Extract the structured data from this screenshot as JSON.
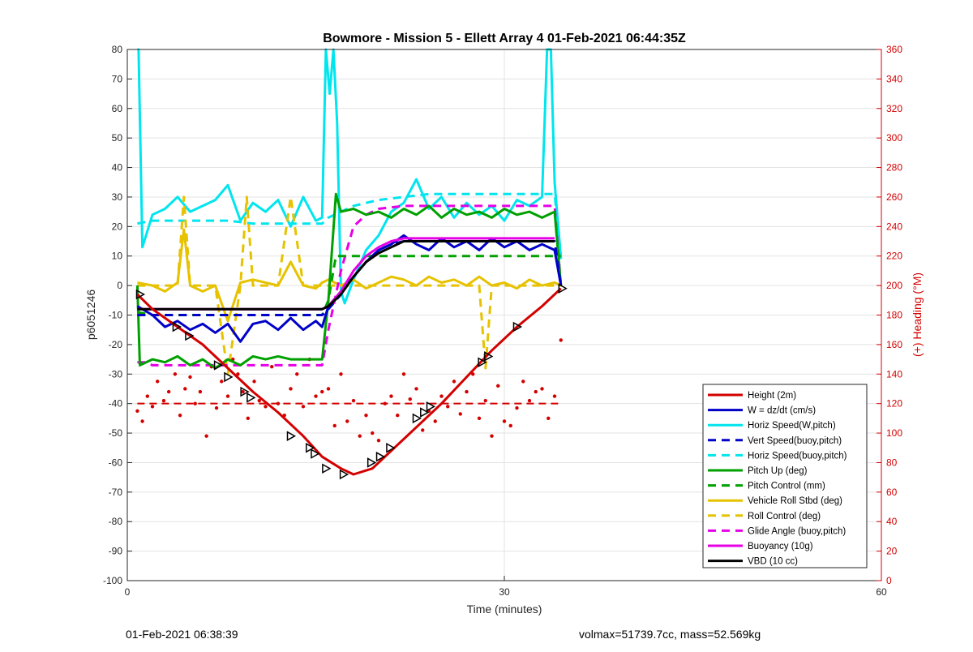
{
  "chart_data": {
    "type": "line",
    "title": "Bowmore - Mission 5 - Ellett Array 4 01-Feb-2021 06:44:35Z",
    "xlabel": "Time (minutes)",
    "ylabel": "p6051246",
    "ylabel_right": "(+) Heading (°M)",
    "xlim": [
      0,
      60
    ],
    "ylim": [
      -100,
      80
    ],
    "ylim_right": [
      0,
      360
    ],
    "x_ticks": [
      0,
      30,
      60
    ],
    "y_ticks": [
      -100,
      -90,
      -80,
      -70,
      -60,
      -50,
      -40,
      -30,
      -20,
      -10,
      0,
      10,
      20,
      30,
      40,
      50,
      60,
      70,
      80
    ],
    "y_ticks_right": [
      0,
      20,
      40,
      60,
      80,
      100,
      120,
      140,
      160,
      180,
      200,
      220,
      240,
      260,
      280,
      300,
      320,
      340,
      360
    ],
    "grid": true,
    "legend_position": "bottom-right",
    "series": [
      {
        "name": "Height (2m)",
        "color": "#d40000",
        "style": "solid",
        "x": [
          0.8,
          2,
          4,
          6,
          8,
          10,
          12,
          14,
          15.5,
          17,
          18,
          19.5,
          21,
          23,
          25,
          27,
          29,
          31,
          33,
          34.5
        ],
        "y": [
          -3,
          -8,
          -14,
          -20,
          -28,
          -36,
          -43,
          -51,
          -58,
          -62,
          -64,
          -62,
          -56,
          -48,
          -40,
          -31,
          -22,
          -14,
          -7,
          -1
        ]
      },
      {
        "name": "W = dz/dt (cm/s)",
        "color": "#0000c8",
        "style": "solid",
        "x": [
          0.8,
          2,
          3,
          4,
          5,
          6,
          7,
          8,
          9,
          10,
          11,
          12,
          13,
          14,
          15,
          15.5,
          16,
          17,
          18,
          19,
          20,
          21,
          22,
          23,
          24,
          25,
          26,
          27,
          28,
          29,
          30,
          31,
          32,
          33,
          34,
          34.5
        ],
        "y": [
          -7,
          -10,
          -14,
          -12,
          -15,
          -13,
          -16,
          -13,
          -19,
          -13,
          -12,
          -15,
          -11,
          -15,
          -12,
          -14,
          -7,
          -2,
          3,
          8,
          12,
          14,
          17,
          14,
          12,
          16,
          13,
          15,
          12,
          16,
          13,
          15,
          12,
          14,
          12,
          0
        ]
      },
      {
        "name": "Horiz Speed(W,pitch)",
        "color": "#00e5ee",
        "style": "solid",
        "x": [
          0.8,
          0.9,
          1.2,
          2,
          3,
          4,
          5,
          6,
          7,
          8,
          9,
          10,
          11,
          12,
          13,
          14,
          15,
          15.5,
          15.8,
          16.1,
          16.4,
          16.7,
          17,
          17.3,
          18,
          19,
          20,
          21,
          22,
          23,
          24,
          25,
          26,
          27,
          28,
          29,
          30,
          31,
          32,
          33,
          33.4,
          33.7,
          34,
          34.5
        ],
        "y": [
          80,
          80,
          13,
          24,
          26,
          30,
          25,
          27,
          29,
          34,
          22,
          28,
          25,
          29,
          20,
          30,
          22,
          23,
          80,
          65,
          80,
          55,
          -2,
          -6,
          2,
          12,
          17,
          25,
          28,
          36,
          26,
          30,
          23,
          28,
          24,
          27,
          22,
          29,
          27,
          30,
          80,
          80,
          35,
          9
        ]
      },
      {
        "name": "Vert Speed(buoy,pitch)",
        "color": "#0000c8",
        "style": "dashed",
        "x": [
          0.8,
          2,
          4,
          6,
          8,
          10,
          12,
          14,
          15.5,
          16,
          17,
          18,
          19,
          20,
          21,
          22,
          23,
          24,
          26,
          28,
          30,
          32,
          34,
          34.5
        ],
        "y": [
          -10,
          -10,
          -10,
          -10,
          -10,
          -10,
          -10,
          -10,
          -10,
          -8,
          -3,
          3,
          8,
          12,
          14,
          15,
          15,
          15,
          15,
          15,
          15,
          15,
          15,
          0
        ]
      },
      {
        "name": "Horiz Speed(buoy,pitch)",
        "color": "#00e5ee",
        "style": "dashed",
        "x": [
          0.8,
          2,
          4,
          6,
          8,
          10,
          12,
          14,
          15.5,
          16,
          17,
          18,
          19,
          20,
          22,
          24,
          26,
          28,
          30,
          32,
          34,
          34.5
        ],
        "y": [
          21,
          22,
          22,
          22,
          22,
          21,
          21,
          21,
          21,
          23,
          25,
          27,
          28,
          29,
          30,
          31,
          31,
          31,
          31,
          31,
          31,
          10
        ]
      },
      {
        "name": "Pitch Up (deg)",
        "color": "#00a000",
        "style": "solid",
        "x": [
          0.8,
          1,
          2,
          3,
          4,
          5,
          6,
          7,
          8,
          9,
          10,
          11,
          12,
          13,
          14,
          15,
          15.5,
          16,
          16.6,
          17,
          18,
          19,
          20,
          21,
          22,
          23,
          24,
          25,
          26,
          27,
          28,
          29,
          30,
          31,
          32,
          33,
          34,
          34.5
        ],
        "y": [
          0,
          -27,
          -25,
          -26,
          -24,
          -27,
          -25,
          -28,
          -25,
          -27,
          -24,
          -25,
          -24,
          -25,
          -25,
          -25,
          -25,
          -5,
          31,
          25,
          26,
          24,
          25,
          23,
          26,
          24,
          27,
          23,
          26,
          24,
          25,
          23,
          26,
          24,
          25,
          23,
          25,
          0
        ]
      },
      {
        "name": "Pitch Control (mm)",
        "color": "#00a000",
        "style": "dashed",
        "x": [
          0.8,
          2,
          4,
          6,
          8,
          10,
          12,
          14,
          15.5,
          16,
          16.6,
          17,
          18,
          20,
          22,
          24,
          26,
          28,
          30,
          32,
          34,
          34.5
        ],
        "y": [
          -9,
          -10,
          -10,
          -10,
          -10,
          -10,
          -10,
          -10,
          -10,
          -5,
          10,
          10,
          10,
          10,
          10,
          10,
          10,
          10,
          10,
          10,
          10,
          10
        ]
      },
      {
        "name": "Vehicle Roll Stbd (deg)",
        "color": "#e6c200",
        "style": "solid",
        "x": [
          0.8,
          2,
          3,
          4,
          4.5,
          5,
          6,
          7,
          8,
          9,
          10,
          11,
          12,
          13,
          14,
          15,
          15.5,
          16,
          17,
          18,
          19,
          20,
          21,
          22,
          23,
          24,
          25,
          26,
          27,
          28,
          29,
          30,
          31,
          32,
          33,
          34,
          34.5
        ],
        "y": [
          1,
          0,
          -2,
          1,
          19,
          0,
          -2,
          0,
          -12,
          1,
          2,
          1,
          0,
          8,
          0,
          -1,
          1,
          2,
          0,
          2,
          -1,
          1,
          3,
          2,
          0,
          3,
          1,
          2,
          0,
          3,
          0,
          1,
          -1,
          2,
          0,
          1,
          0
        ]
      },
      {
        "name": "Roll Control (deg)",
        "color": "#e6c200",
        "style": "dashed",
        "x": [
          0.8,
          2,
          3,
          4,
          4.5,
          5,
          6,
          7,
          8,
          9,
          9.5,
          10,
          12,
          13,
          14,
          15,
          15.5,
          16,
          18,
          19,
          20,
          21,
          22,
          23,
          24,
          25,
          26,
          27,
          28,
          28.5,
          29,
          30,
          31,
          32,
          34,
          34.5
        ],
        "y": [
          0,
          0,
          0,
          0,
          30,
          0,
          0,
          0,
          -30,
          0,
          30,
          0,
          0,
          30,
          0,
          0,
          0,
          0,
          0,
          0,
          0,
          0,
          0,
          0,
          0,
          0,
          0,
          0,
          0,
          -28,
          0,
          0,
          0,
          0,
          0,
          0
        ]
      },
      {
        "name": "Glide Angle (buoy,pitch)",
        "color": "#e600e6",
        "style": "dashed",
        "x": [
          0.8,
          1.5,
          2,
          4,
          6,
          8,
          10,
          12,
          14,
          15.5,
          16,
          17,
          18,
          19,
          20,
          22,
          24,
          26,
          28,
          30,
          32,
          34,
          34.5
        ],
        "y": [
          -26,
          -26,
          -27,
          -27,
          -27,
          -27,
          -27,
          -27,
          -27,
          -27,
          -15,
          5,
          20,
          24,
          26,
          27,
          27,
          27,
          27,
          27,
          27,
          27,
          0
        ]
      },
      {
        "name": "Buoyancy (10g)",
        "color": "#e600e6",
        "style": "solid",
        "x": [
          0.8,
          2,
          4,
          6,
          8,
          10,
          12,
          14,
          15.5,
          16,
          17,
          18,
          19,
          20,
          21,
          22,
          24,
          26,
          28,
          30,
          32,
          34
        ],
        "y": [
          -8,
          -8,
          -8,
          -8,
          -8,
          -8,
          -8,
          -8,
          -8,
          -7,
          -2,
          5,
          10,
          13,
          15,
          16,
          16,
          16,
          16,
          16,
          16,
          16
        ]
      },
      {
        "name": "VBD (10 cc)",
        "color": "#000000",
        "style": "solid",
        "x": [
          0.8,
          2,
          4,
          6,
          8,
          10,
          12,
          14,
          15.5,
          16,
          17,
          18,
          19,
          20,
          21,
          22,
          24,
          26,
          28,
          30,
          32,
          34
        ],
        "y": [
          -8,
          -8,
          -8,
          -8,
          -8,
          -8,
          -8,
          -8,
          -8,
          -7,
          -3,
          3,
          8,
          11,
          13,
          15,
          15,
          15,
          15,
          15,
          15,
          15
        ]
      }
    ],
    "heading_reference": {
      "color": "#d40000",
      "style": "dashed",
      "x": [
        0.8,
        34.5
      ],
      "y_right": [
        120,
        120
      ]
    },
    "heading_points": {
      "color": "#d40000",
      "axis": "right",
      "x": [
        0.8,
        1.2,
        1.6,
        2.0,
        2.4,
        2.9,
        3.3,
        3.8,
        4.2,
        4.6,
        5.0,
        5.4,
        5.8,
        6.3,
        6.7,
        7.1,
        7.5,
        8.0,
        8.4,
        8.8,
        9.2,
        9.6,
        10.1,
        10.5,
        11.0,
        11.5,
        12.0,
        12.5,
        13.0,
        13.5,
        14.0,
        14.5,
        15.0,
        15.5,
        16.0,
        16.5,
        17.0,
        17.5,
        18.0,
        18.5,
        19.0,
        19.5,
        20.0,
        20.5,
        21.0,
        21.5,
        22.0,
        22.5,
        23.0,
        23.5,
        24.0,
        24.5,
        25.0,
        25.5,
        26.0,
        26.5,
        27.0,
        27.5,
        28.0,
        28.5,
        29.0,
        29.5,
        30.0,
        30.5,
        31.0,
        31.5,
        32.0,
        32.5,
        33.0,
        33.5,
        34.0,
        34.5
      ],
      "y_right": [
        115,
        108,
        125,
        118,
        135,
        122,
        128,
        140,
        112,
        130,
        138,
        120,
        128,
        98,
        145,
        117,
        135,
        125,
        150,
        140,
        128,
        110,
        135,
        122,
        118,
        145,
        120,
        112,
        130,
        140,
        118,
        150,
        125,
        128,
        130,
        105,
        140,
        108,
        122,
        98,
        112,
        100,
        95,
        120,
        125,
        112,
        140,
        123,
        130,
        102,
        115,
        108,
        125,
        118,
        135,
        113,
        128,
        140,
        110,
        122,
        98,
        132,
        108,
        105,
        117,
        135,
        122,
        128,
        130,
        110,
        125,
        163
      ]
    },
    "markers": {
      "color": "#000000",
      "shape": "triangle",
      "x": [
        1.0,
        3.9,
        4.9,
        7.2,
        8.0,
        9.3,
        9.8,
        13.0,
        14.5,
        14.9,
        15.8,
        17.2,
        19.4,
        20.1,
        20.9,
        23.0,
        23.6,
        24.1,
        28.2,
        28.7,
        31.0,
        34.6
      ],
      "y": [
        -3,
        -14,
        -17,
        -27,
        -31,
        -36,
        -38,
        -51,
        -55,
        -57,
        -62,
        -64,
        -60,
        -58,
        -55,
        -45,
        -43,
        -41,
        -26,
        -24,
        -14,
        -1
      ]
    }
  },
  "footer": {
    "timestamp": "01-Feb-2021 06:38:39",
    "stats": "volmax=51739.7cc, mass=52.569kg"
  }
}
